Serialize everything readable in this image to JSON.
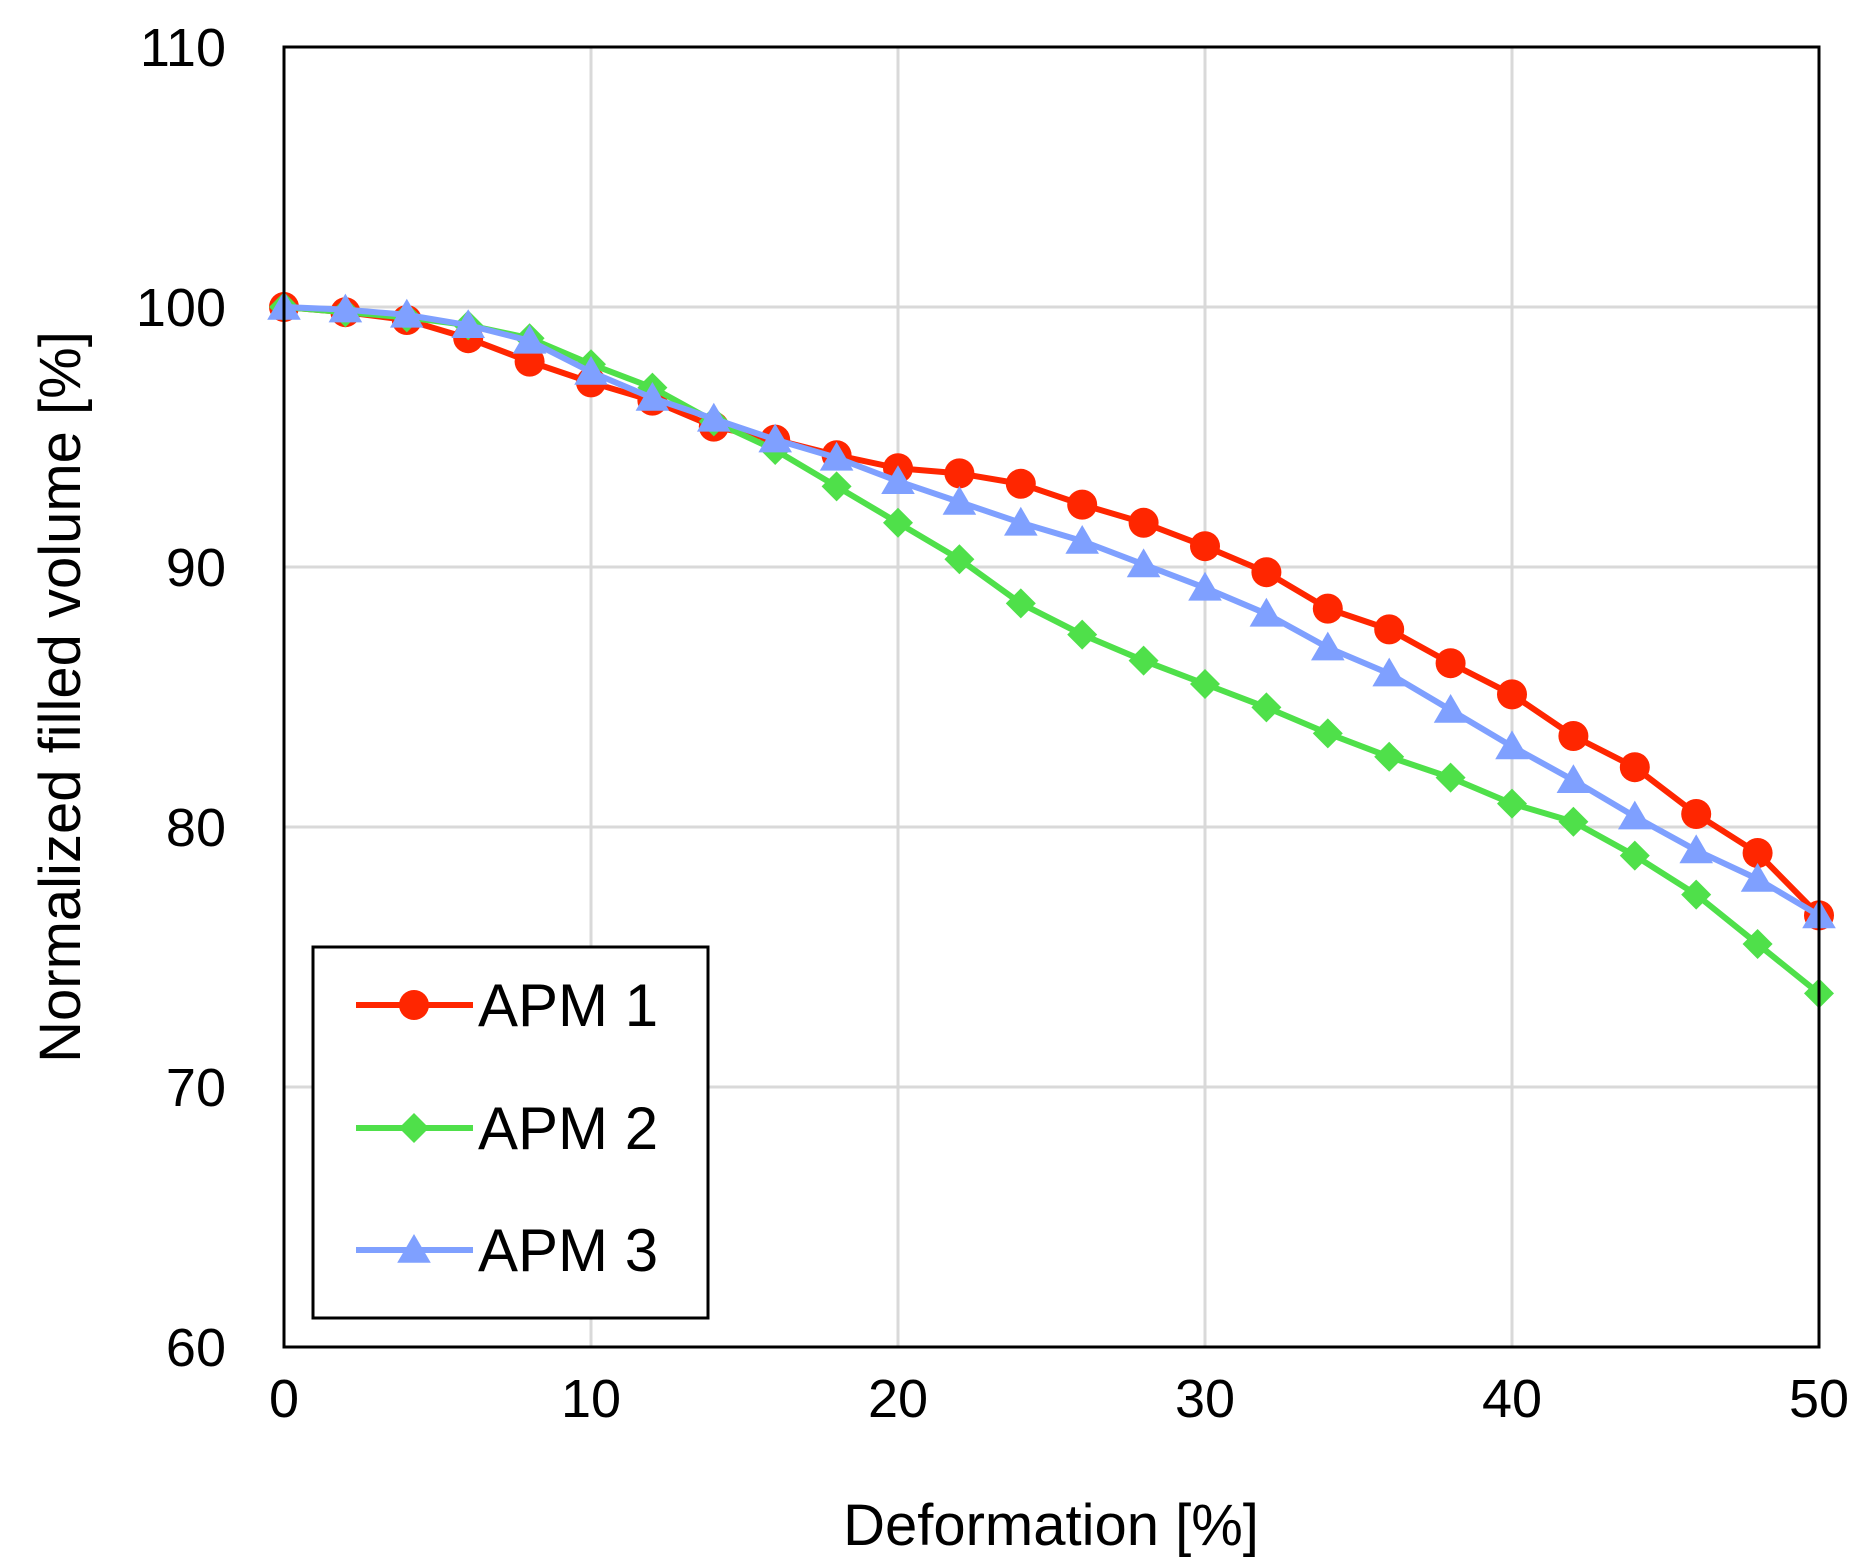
{
  "chart_data": {
    "type": "line",
    "title": "",
    "xlabel": "Deformation [%]",
    "ylabel": "Normalized filled volume [%]",
    "xlim": [
      0,
      50
    ],
    "ylim": [
      60,
      110
    ],
    "xticks": [
      0,
      10,
      20,
      30,
      40,
      50
    ],
    "yticks": [
      60,
      70,
      80,
      90,
      100,
      110
    ],
    "grid": true,
    "legend_position": "bottom-left",
    "x": [
      0,
      2,
      4,
      6,
      8,
      10,
      12,
      14,
      16,
      18,
      20,
      22,
      24,
      26,
      28,
      30,
      32,
      34,
      36,
      38,
      40,
      42,
      44,
      46,
      48,
      50
    ],
    "series": [
      {
        "name": "APM 1",
        "color": "#ff2600",
        "marker": "circle",
        "values": [
          100.0,
          99.8,
          99.5,
          98.8,
          97.9,
          97.1,
          96.4,
          95.4,
          94.9,
          94.3,
          93.8,
          93.6,
          93.2,
          92.4,
          91.7,
          90.8,
          89.8,
          88.4,
          87.6,
          86.3,
          85.1,
          83.5,
          82.3,
          80.5,
          79.0,
          76.6
        ]
      },
      {
        "name": "APM 2",
        "color": "#4fe04a",
        "marker": "diamond",
        "values": [
          100.0,
          99.8,
          99.6,
          99.3,
          98.8,
          97.8,
          96.9,
          95.6,
          94.5,
          93.1,
          91.7,
          90.3,
          88.6,
          87.4,
          86.4,
          85.5,
          84.6,
          83.6,
          82.7,
          81.9,
          80.9,
          80.2,
          78.9,
          77.4,
          75.5,
          73.6
        ]
      },
      {
        "name": "APM 3",
        "color": "#7fa0ff",
        "marker": "triangle",
        "values": [
          100.0,
          99.9,
          99.7,
          99.3,
          98.7,
          97.5,
          96.5,
          95.7,
          94.9,
          94.2,
          93.3,
          92.5,
          91.7,
          91.0,
          90.1,
          89.2,
          88.2,
          86.9,
          85.9,
          84.5,
          83.1,
          81.8,
          80.4,
          79.1,
          78.0,
          76.6
        ]
      }
    ]
  }
}
